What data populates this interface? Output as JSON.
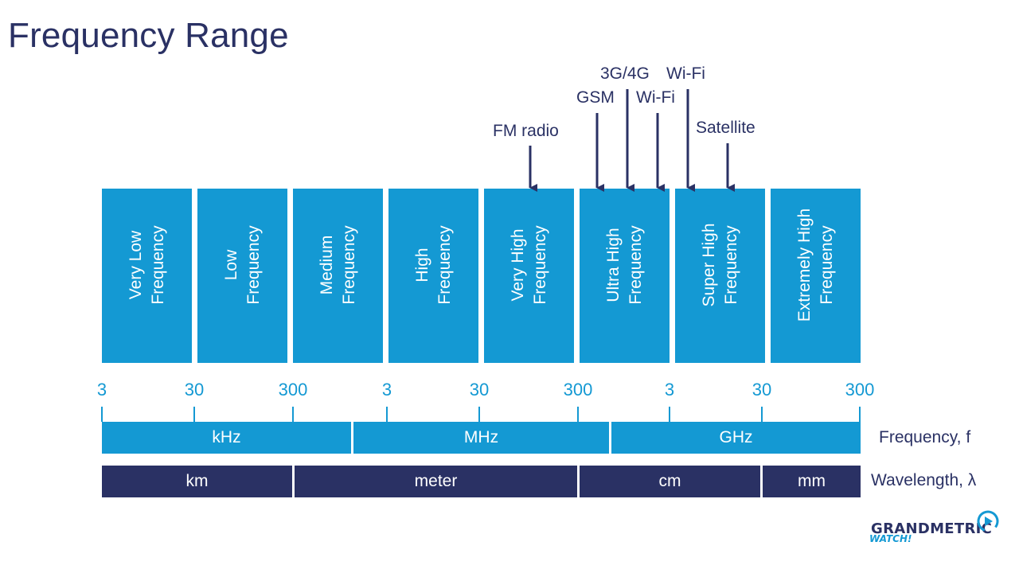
{
  "title": "Frequency Range",
  "bands": [
    {
      "label": "Very Low\nFrequency"
    },
    {
      "label": "Low\nFrequency"
    },
    {
      "label": "Medium\nFrequency"
    },
    {
      "label": "High\nFrequency"
    },
    {
      "label": "Very High\nFrequency"
    },
    {
      "label": "Ultra High\nFrequency"
    },
    {
      "label": "Super High\nFrequency"
    },
    {
      "label": "Extremely High\nFrequency"
    }
  ],
  "ticks": [
    "3",
    "30",
    "300",
    "3",
    "30",
    "300",
    "3",
    "30",
    "300"
  ],
  "frequency": {
    "row_label": "Frequency, f",
    "units": [
      "kHz",
      "MHz",
      "GHz"
    ]
  },
  "wavelength": {
    "row_label": "Wavelength, λ",
    "units": [
      "km",
      "meter",
      "cm",
      "mm"
    ]
  },
  "applications": {
    "fm_radio": "FM radio",
    "gsm": "GSM",
    "g3g4": "3G/4G",
    "wifi_1": "Wi-Fi",
    "wifi_2": "Wi-Fi",
    "satellite": "Satellite"
  },
  "logo": {
    "name": "GRANDMETRIC",
    "sub": "WATCH!"
  },
  "colors": {
    "band_blue": "#1499d3",
    "navy": "#2a3164"
  }
}
